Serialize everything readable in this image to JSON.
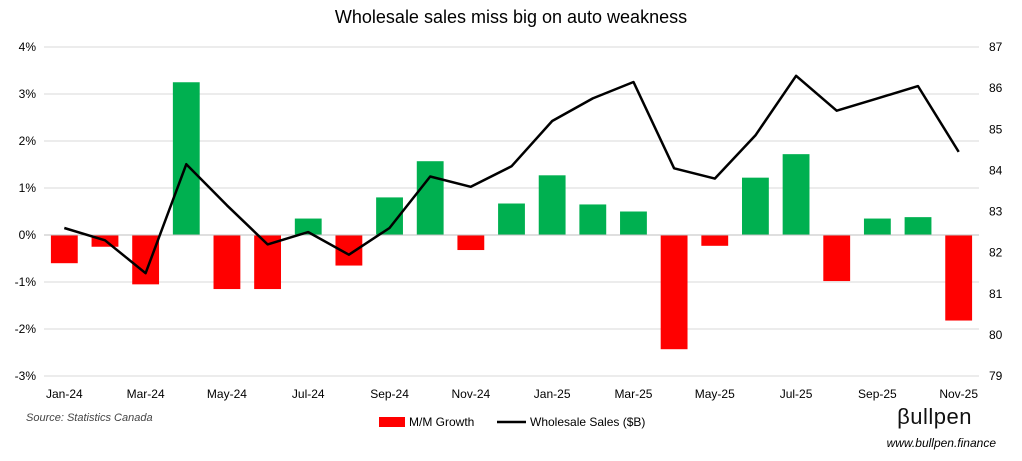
{
  "chart_data": {
    "type": "bar+line",
    "title": "Wholesale sales miss big on auto weakness",
    "categories": [
      "Jan-24",
      "Feb-24",
      "Mar-24",
      "Apr-24",
      "May-24",
      "Jun-24",
      "Jul-24",
      "Aug-24",
      "Sep-24",
      "Oct-24",
      "Nov-24",
      "Dec-24",
      "Jan-25",
      "Feb-25",
      "Mar-25",
      "Apr-25",
      "May-25",
      "Jun-25",
      "Jul-25",
      "Aug-25",
      "Sep-25",
      "Oct-25",
      "Nov-25"
    ],
    "x_tick_labels": [
      "Jan-24",
      "Mar-24",
      "May-24",
      "Jul-24",
      "Sep-24",
      "Nov-24",
      "Jan-25",
      "Mar-25",
      "May-25",
      "Jul-25",
      "Sep-25",
      "Nov-25"
    ],
    "series": [
      {
        "name": "M/M Growth",
        "type": "bar",
        "axis": "left",
        "positive_color": "#00b050",
        "negative_color": "#ff0000",
        "values": [
          -0.6,
          -0.25,
          -1.05,
          3.25,
          -1.15,
          -1.15,
          0.35,
          -0.65,
          0.8,
          1.57,
          -0.32,
          0.67,
          1.27,
          0.65,
          0.5,
          -2.43,
          -0.23,
          1.22,
          1.72,
          -0.98,
          0.35,
          0.38,
          -1.82
        ]
      },
      {
        "name": "Wholesale Sales ($B)",
        "type": "line",
        "axis": "right",
        "color": "#000000",
        "values": [
          82.6,
          82.3,
          81.5,
          84.15,
          83.15,
          82.2,
          82.5,
          81.95,
          82.6,
          83.85,
          83.6,
          84.1,
          85.2,
          85.75,
          86.15,
          84.05,
          83.8,
          84.85,
          86.3,
          85.45,
          85.75,
          86.05,
          84.45
        ]
      }
    ],
    "y_left": {
      "min": -3,
      "max": 4,
      "step": 1,
      "format": "percent"
    },
    "y_right": {
      "min": 79,
      "max": 87,
      "step": 1
    },
    "grid": true,
    "legend": {
      "position": "bottom-center",
      "entries": [
        {
          "label": "M/M Growth",
          "swatch": "bar",
          "color": "#ff0000"
        },
        {
          "label": "Wholesale Sales ($B)",
          "swatch": "line",
          "color": "#000000"
        }
      ]
    }
  },
  "footer": {
    "source": "Source: Statistics Canada",
    "brand": "βullpen",
    "website": "www.bullpen.finance"
  }
}
